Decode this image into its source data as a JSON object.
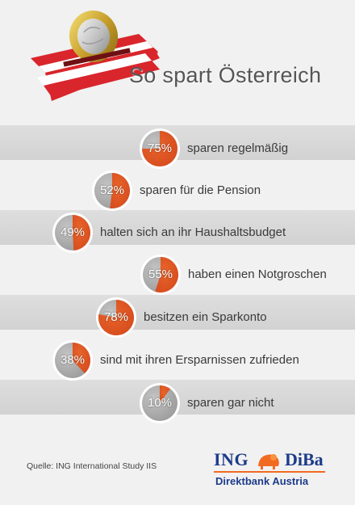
{
  "title": "So spart Österreich",
  "source": "Quelle: ING International Study IIS",
  "logo": {
    "ing": "ING",
    "diba": "DiBa",
    "subtitle": "Direktbank Austria"
  },
  "colors": {
    "slice": "#d4471b",
    "slice_light": "#e8652b",
    "rest": "#9a9a9a",
    "rest_light": "#c4c4c4",
    "band": "#d8d8d8",
    "brand_blue": "#1d3b8a",
    "brand_orange": "#f26a21"
  },
  "chart_data": {
    "type": "pie",
    "title": "So spart Österreich",
    "items": [
      {
        "value": 75,
        "label": "75%",
        "text": "sparen regelmäßig"
      },
      {
        "value": 52,
        "label": "52%",
        "text": "sparen für die Pension"
      },
      {
        "value": 49,
        "label": "49%",
        "text": "halten sich an ihr Haushaltsbudget"
      },
      {
        "value": 55,
        "label": "55%",
        "text": "haben einen Notgroschen"
      },
      {
        "value": 78,
        "label": "78%",
        "text": "besitzen ein Sparkonto"
      },
      {
        "value": 38,
        "label": "38%",
        "text": "sind mit ihren Ersparnissen zufrieden"
      },
      {
        "value": 10,
        "label": "10%",
        "text": "sparen gar nicht"
      }
    ]
  }
}
